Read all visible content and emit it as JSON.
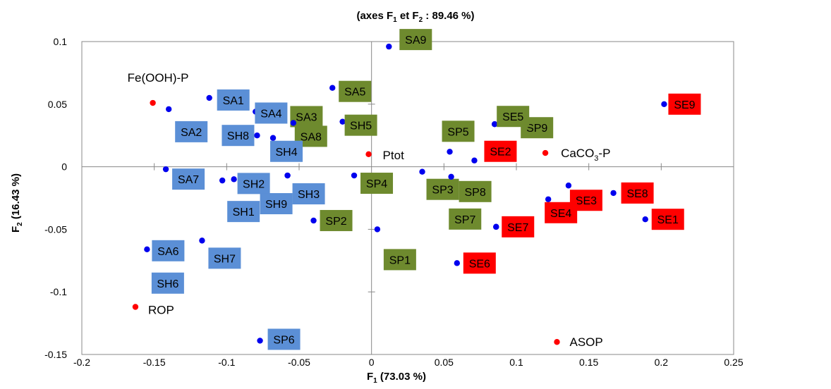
{
  "chart_data": {
    "type": "scatter",
    "title_prefix": "(axes F",
    "title_sub1": "1",
    "title_mid": " et F",
    "title_sub2": "2",
    "title_suffix": " : 89.46 %)",
    "xlabel_main": "F",
    "xlabel_sub": "1",
    "xlabel_rest": " (73.03 %)",
    "ylabel_main": "F",
    "ylabel_sub": "2",
    "ylabel_rest": " (16.43 %)",
    "xlim": [
      -0.2,
      0.25
    ],
    "ylim": [
      -0.15,
      0.1
    ],
    "xticks": [
      "-0.2",
      "-0.15",
      "-0.1",
      "-0.05",
      "0",
      "0.05",
      "0.1",
      "0.15",
      "0.2",
      "0.25"
    ],
    "yticks": [
      "-0.15",
      "-0.1",
      "-0.05",
      "0",
      "0.05",
      "0.1"
    ],
    "grid": false,
    "colors": {
      "point": "#0000ee",
      "variable": "#ff0000",
      "SA_SH": "#5b8fd6",
      "SP": "#6e8a2e",
      "SE": "#ff0000"
    },
    "observations": [
      {
        "label": "SA1",
        "x": -0.112,
        "y": 0.055,
        "group": "SA_SH"
      },
      {
        "label": "SA2",
        "x": -0.14,
        "y": 0.046,
        "group": "SA_SH"
      },
      {
        "label": "SA3",
        "x": -0.08,
        "y": 0.044,
        "group": "SP"
      },
      {
        "label": "SA4",
        "x": -0.08,
        "y": 0.044,
        "group": "SA_SH"
      },
      {
        "label": "SA5",
        "x": -0.027,
        "y": 0.063,
        "group": "SP"
      },
      {
        "label": "SA6",
        "x": -0.155,
        "y": -0.066,
        "group": "SA_SH"
      },
      {
        "label": "SA7",
        "x": -0.142,
        "y": -0.002,
        "group": "SA_SH"
      },
      {
        "label": "SA8",
        "x": -0.054,
        "y": 0.035,
        "group": "SP"
      },
      {
        "label": "SA9",
        "x": 0.012,
        "y": 0.096,
        "group": "SP"
      },
      {
        "label": "SH1",
        "x": -0.103,
        "y": -0.011,
        "group": "SA_SH"
      },
      {
        "label": "SH2",
        "x": -0.095,
        "y": -0.01,
        "group": "SA_SH"
      },
      {
        "label": "SH3",
        "x": -0.058,
        "y": -0.007,
        "group": "SA_SH"
      },
      {
        "label": "SH4",
        "x": -0.068,
        "y": 0.023,
        "group": "SA_SH"
      },
      {
        "label": "SH5",
        "x": -0.02,
        "y": 0.036,
        "group": "SP"
      },
      {
        "label": "SH6",
        "x": -0.146,
        "y": -0.093,
        "group": "SA_SH"
      },
      {
        "label": "SH7",
        "x": -0.117,
        "y": -0.059,
        "group": "SA_SH"
      },
      {
        "label": "SH8",
        "x": -0.079,
        "y": 0.025,
        "group": "SA_SH"
      },
      {
        "label": "SH9",
        "x": -0.058,
        "y": -0.007,
        "group": "SA_SH"
      },
      {
        "label": "SP1",
        "x": 0.004,
        "y": -0.05,
        "group": "SP"
      },
      {
        "label": "SP2",
        "x": -0.04,
        "y": -0.043,
        "group": "SP"
      },
      {
        "label": "SP3",
        "x": 0.035,
        "y": -0.004,
        "group": "SP"
      },
      {
        "label": "SP4",
        "x": -0.012,
        "y": -0.007,
        "group": "SP"
      },
      {
        "label": "SP5",
        "x": 0.054,
        "y": 0.012,
        "group": "SP"
      },
      {
        "label": "SP6",
        "x": -0.077,
        "y": -0.139,
        "group": "SA_SH"
      },
      {
        "label": "SP7",
        "x": 0.086,
        "y": -0.048,
        "group": "SP"
      },
      {
        "label": "SP8",
        "x": 0.055,
        "y": -0.008,
        "group": "SP"
      },
      {
        "label": "SP9",
        "x": 0.085,
        "y": 0.034,
        "group": "SP"
      },
      {
        "label": "SE1",
        "x": 0.189,
        "y": -0.042,
        "group": "SE"
      },
      {
        "label": "SE2",
        "x": 0.071,
        "y": 0.005,
        "group": "SE"
      },
      {
        "label": "SE3",
        "x": 0.136,
        "y": -0.015,
        "group": "SE"
      },
      {
        "label": "SE4",
        "x": 0.122,
        "y": -0.026,
        "group": "SE"
      },
      {
        "label": "SE5",
        "x": 0.085,
        "y": 0.034,
        "group": "SP"
      },
      {
        "label": "SE6",
        "x": 0.059,
        "y": -0.077,
        "group": "SE"
      },
      {
        "label": "SE7",
        "x": 0.086,
        "y": -0.048,
        "group": "SE"
      },
      {
        "label": "SE8",
        "x": 0.167,
        "y": -0.021,
        "group": "SE"
      },
      {
        "label": "SE9",
        "x": 0.202,
        "y": 0.05,
        "group": "SE"
      }
    ],
    "variables": [
      {
        "label": "Fe(OOH)-P",
        "x": -0.151,
        "y": 0.051
      },
      {
        "label": "Ptot",
        "x": -0.002,
        "y": 0.01
      },
      {
        "label": "CaCO3-P",
        "label_main": "CaCO",
        "label_sub": "3",
        "label_rest": "-P",
        "x": 0.12,
        "y": 0.011
      },
      {
        "label": "ROP",
        "x": -0.163,
        "y": -0.112
      },
      {
        "label": "ASOP",
        "x": 0.128,
        "y": -0.14
      }
    ]
  }
}
